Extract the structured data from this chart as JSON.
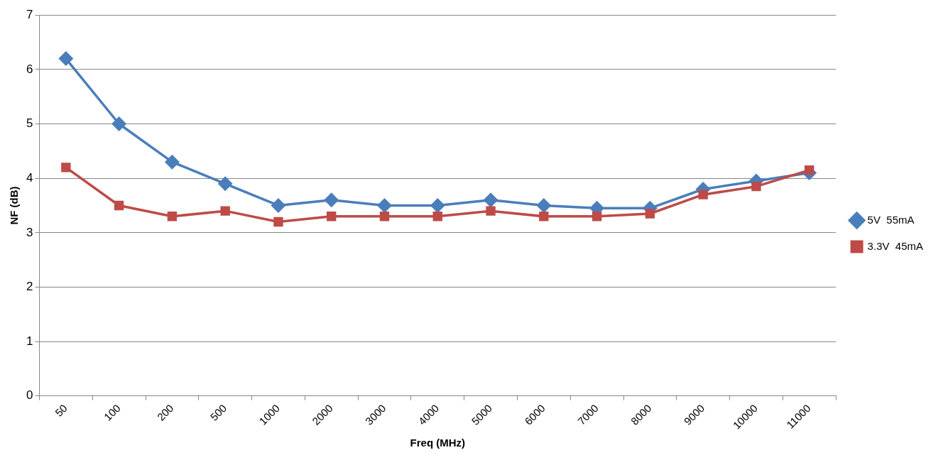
{
  "chart_data": {
    "type": "line",
    "xlabel": "Freq (MHz)",
    "ylabel": "NF (dB)",
    "categories": [
      "50",
      "100",
      "200",
      "500",
      "1000",
      "2000",
      "3000",
      "4000",
      "5000",
      "6000",
      "7000",
      "8000",
      "9000",
      "10000",
      "11000"
    ],
    "series": [
      {
        "name": "5V  55mA",
        "color": "#4a7ebb",
        "marker": "diamond",
        "values": [
          6.2,
          5.0,
          4.3,
          3.9,
          3.5,
          3.6,
          3.5,
          3.5,
          3.6,
          3.5,
          3.45,
          3.45,
          3.8,
          3.95,
          4.1
        ]
      },
      {
        "name": "3.3V  45mA",
        "color": "#be4b48",
        "marker": "square",
        "values": [
          4.2,
          3.5,
          3.3,
          3.4,
          3.2,
          3.3,
          3.3,
          3.3,
          3.4,
          3.3,
          3.3,
          3.35,
          3.7,
          3.85,
          4.15
        ]
      }
    ],
    "ylim": [
      0,
      7
    ],
    "yticks": [
      0,
      1,
      2,
      3,
      4,
      5,
      6,
      7
    ],
    "grid": "y",
    "legend": "right"
  }
}
